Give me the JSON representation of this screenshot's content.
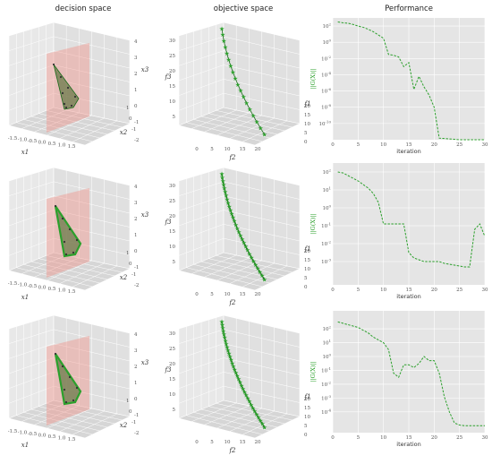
{
  "column_titles": [
    "decision space",
    "objective space",
    "Performance"
  ],
  "decision_axes": {
    "x1_label": "x1",
    "x2_label": "x2",
    "x3_label": "x3",
    "x1_ticks": [
      "-1.5",
      "-1.0",
      "-0.5",
      "0.0",
      "0.5",
      "1.0",
      "1.5"
    ],
    "x2_ticks": [
      "-2",
      "-1",
      "0",
      "1"
    ],
    "x3_ticks": [
      "-1",
      "0",
      "1",
      "2",
      "3",
      "4"
    ]
  },
  "objective_axes": {
    "f1_label": "f1",
    "f2_label": "f2",
    "f3_label": "f3",
    "f2_ticks": [
      "0",
      "5",
      "10",
      "15",
      "20"
    ],
    "f1_ticks": [
      "0",
      "5",
      "10",
      "15",
      "20"
    ],
    "f3_ticks": [
      "5",
      "10",
      "15",
      "20",
      "25",
      "30"
    ]
  },
  "performance_axes": {
    "xlabel": "iteration",
    "ylabel": "||G(X)||",
    "x_ticks": [
      "0",
      "5",
      "10",
      "15",
      "20",
      "25",
      "30"
    ]
  },
  "chart_data": [
    {
      "type": "line",
      "panel": "Performance",
      "row": 1,
      "xlabel": "iteration",
      "ylabel": "||G(X)||",
      "scale_y": "log",
      "xlim": [
        0,
        30
      ],
      "ylim_exp": [
        -12,
        3
      ],
      "ytick_exponents": [
        2,
        0,
        -2,
        -4,
        -6,
        -8,
        -10
      ],
      "series": [
        {
          "color": "#2ca02c",
          "style": "dashed",
          "x": [
            1,
            2,
            3,
            4,
            5,
            6,
            7,
            8,
            9,
            10,
            11,
            12,
            13,
            14,
            15,
            16,
            17,
            18,
            19,
            20,
            21,
            22,
            23,
            24,
            25,
            26,
            27,
            28,
            29,
            30
          ],
          "log10y": [
            2.5,
            2.4,
            2.35,
            2.2,
            2.0,
            1.85,
            1.6,
            1.3,
            0.9,
            0.5,
            -1.5,
            -1.6,
            -1.8,
            -3.0,
            -2.5,
            -5.8,
            -4.2,
            -5.5,
            -6.5,
            -8.0,
            -11.8,
            -11.85,
            -11.9,
            -11.95,
            -12.0,
            -12.0,
            -12.0,
            -12.0,
            -12.0,
            -12.0
          ]
        }
      ]
    },
    {
      "type": "line",
      "panel": "Performance",
      "row": 2,
      "xlabel": "iteration",
      "ylabel": "||G(X)||",
      "scale_y": "log",
      "xlim": [
        0,
        30
      ],
      "ylim_exp": [
        -4.3,
        2.5
      ],
      "ytick_exponents": [
        2,
        1,
        0,
        -1,
        -2,
        -3
      ],
      "series": [
        {
          "color": "#2ca02c",
          "style": "dashed",
          "x": [
            1,
            2,
            3,
            4,
            5,
            6,
            7,
            8,
            9,
            10,
            11,
            12,
            13,
            14,
            15,
            16,
            17,
            18,
            19,
            20,
            21,
            22,
            23,
            24,
            25,
            26,
            27,
            28,
            29,
            30
          ],
          "log10y": [
            2.0,
            1.95,
            1.8,
            1.65,
            1.5,
            1.3,
            1.1,
            0.8,
            0.3,
            -0.9,
            -0.9,
            -0.9,
            -0.9,
            -0.9,
            -2.5,
            -2.8,
            -2.9,
            -3.0,
            -3.0,
            -3.0,
            -3.0,
            -3.1,
            -3.15,
            -3.2,
            -3.25,
            -3.3,
            -3.3,
            -1.2,
            -0.9,
            -1.6
          ]
        }
      ]
    },
    {
      "type": "line",
      "panel": "Performance",
      "row": 3,
      "xlabel": "iteration",
      "ylabel": "||G(X)||",
      "scale_y": "log",
      "xlim": [
        0,
        30
      ],
      "ylim_exp": [
        -5.5,
        3.3
      ],
      "ytick_exponents": [
        2,
        1,
        0,
        -1,
        -2,
        -3,
        -4
      ],
      "series": [
        {
          "color": "#2ca02c",
          "style": "dashed",
          "x": [
            1,
            2,
            3,
            4,
            5,
            6,
            7,
            8,
            9,
            10,
            11,
            12,
            13,
            14,
            15,
            16,
            17,
            18,
            19,
            20,
            21,
            22,
            23,
            24,
            25,
            26,
            27,
            28,
            29,
            30
          ],
          "log10y": [
            2.5,
            2.4,
            2.3,
            2.2,
            2.1,
            1.9,
            1.7,
            1.4,
            1.2,
            1.0,
            0.5,
            -1.2,
            -1.5,
            -0.6,
            -0.6,
            -0.8,
            -0.5,
            0.0,
            -0.3,
            -0.3,
            -1.2,
            -2.9,
            -4.0,
            -4.8,
            -4.95,
            -5.0,
            -5.0,
            -5.0,
            -5.0,
            -5.0
          ]
        }
      ]
    }
  ]
}
